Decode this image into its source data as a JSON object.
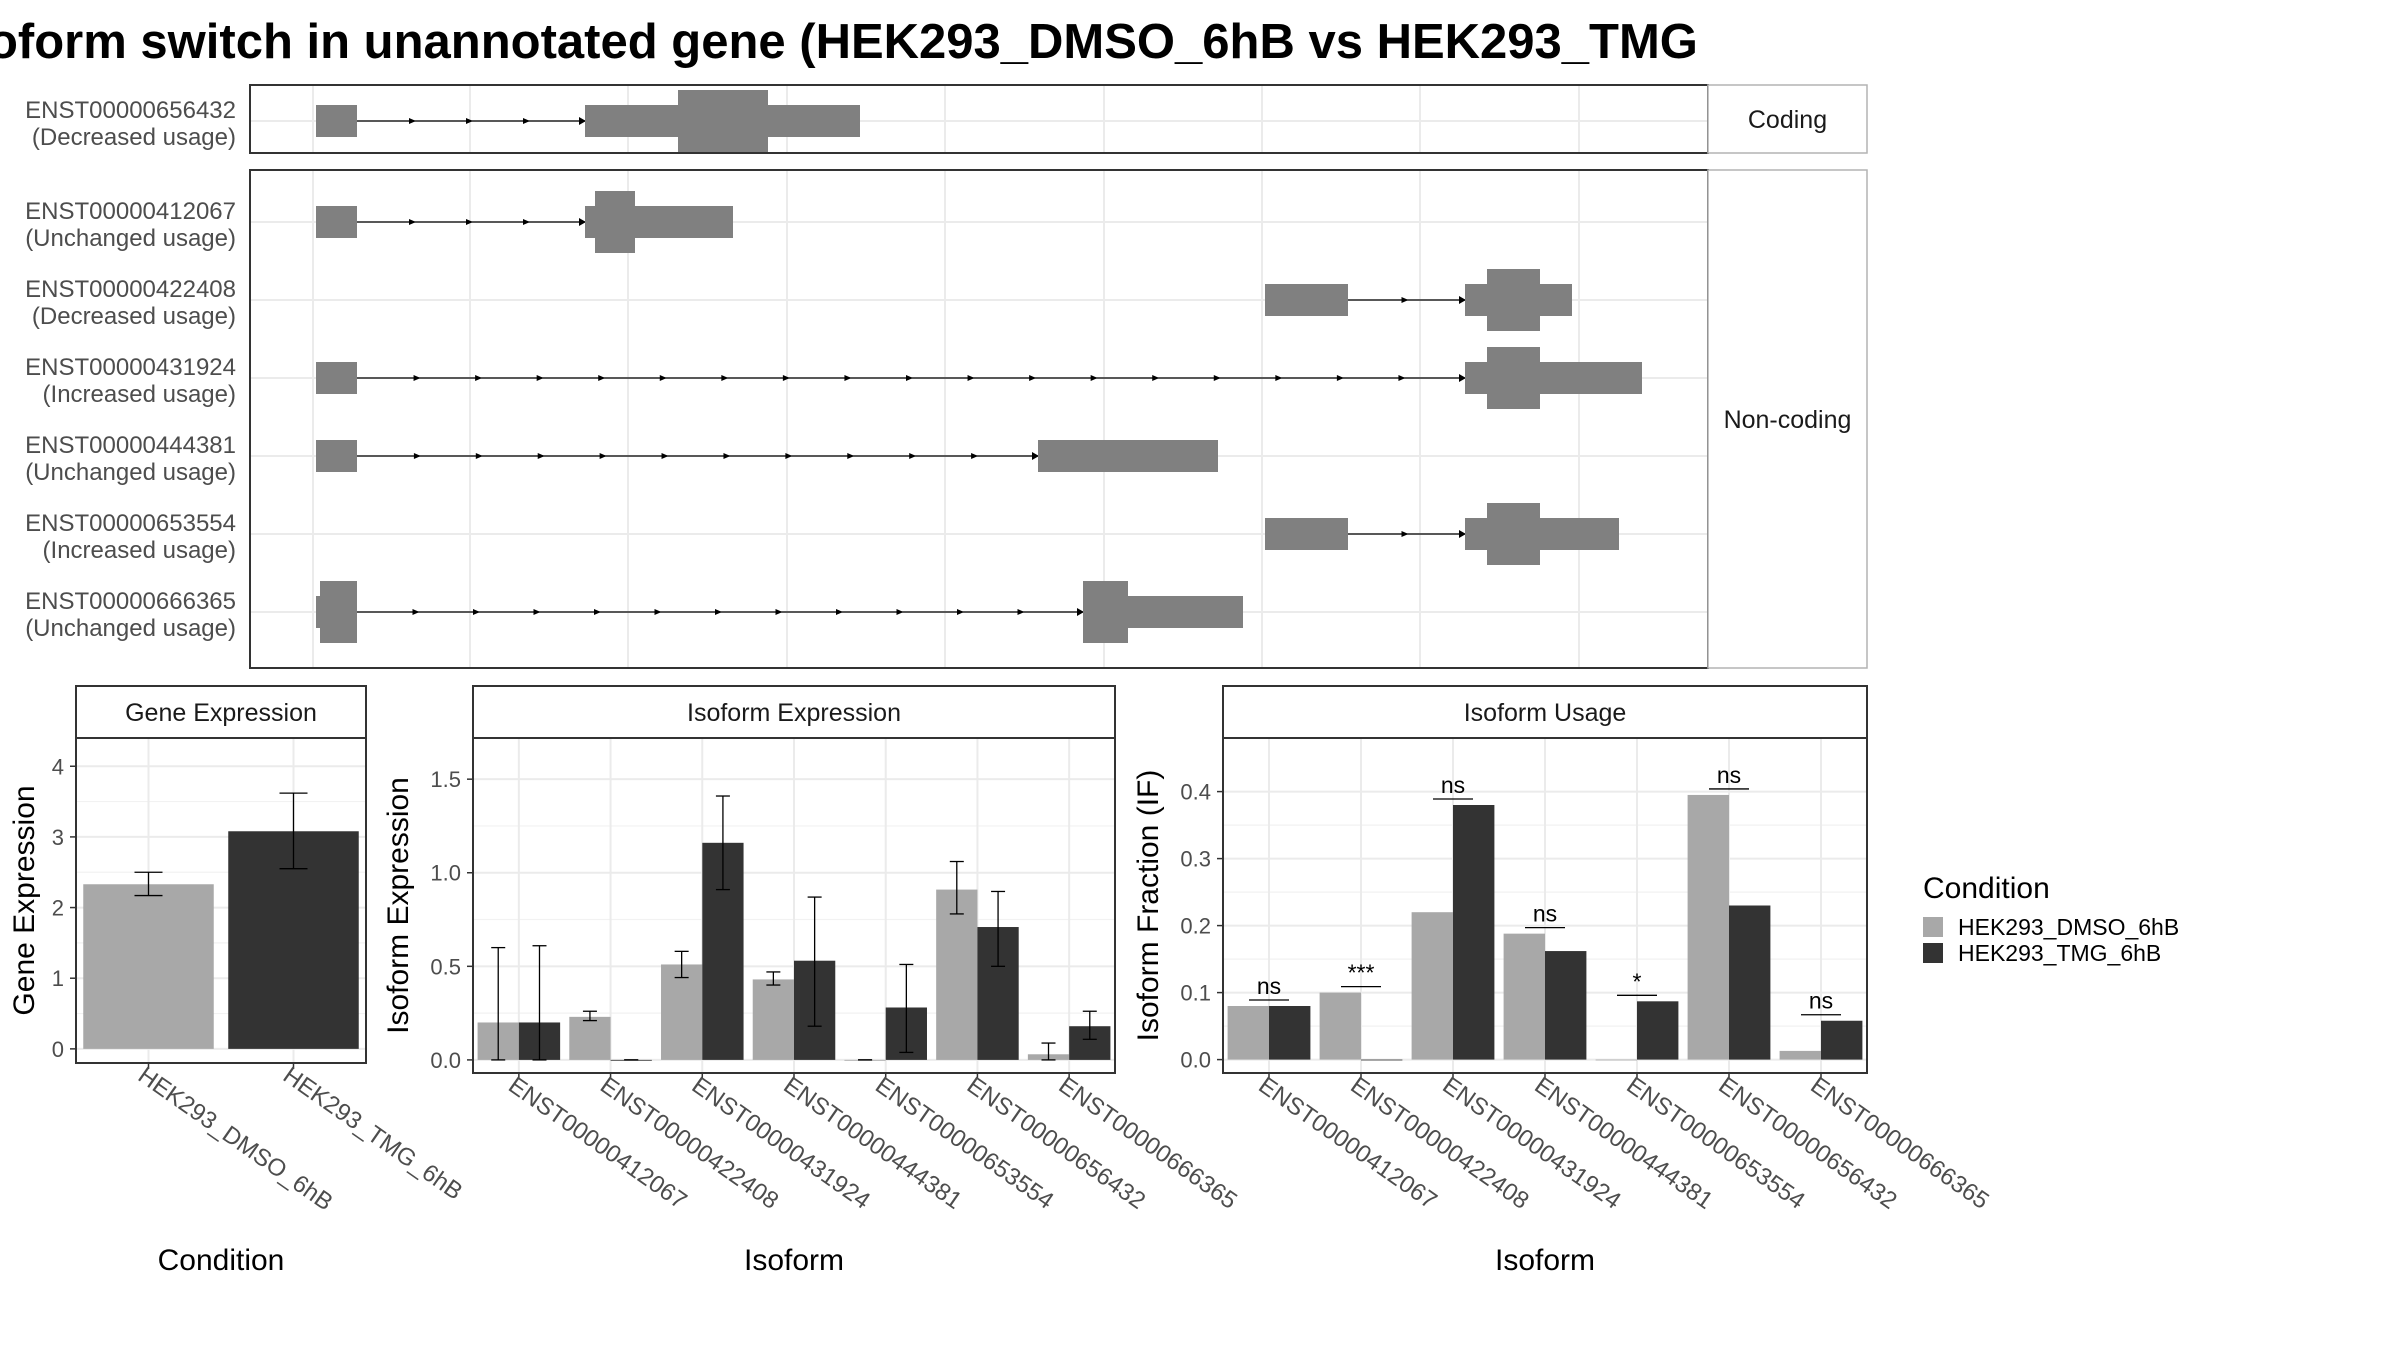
{
  "title": "oform switch in unannotated gene (HEK293_DMSO_6hB vs HEK293_TMG",
  "colors": {
    "dmso": "#a8a8a8",
    "tmg": "#333333",
    "feature": "#808080",
    "grid": "#ebebeb",
    "strip_bg": "#ffffff",
    "panel_border": "#333333",
    "strip_border": "#b3b3b3"
  },
  "transcript_panel": {
    "facets": [
      {
        "label": "Coding",
        "rows": 1
      },
      {
        "label": "Non-coding",
        "rows": 6
      }
    ],
    "transcripts": [
      {
        "id": "ENST00000656432",
        "status": "(Decreased usage)",
        "facet": 0
      },
      {
        "id": "ENST00000412067",
        "status": "(Unchanged usage)",
        "facet": 1
      },
      {
        "id": "ENST00000422408",
        "status": "(Decreased usage)",
        "facet": 1
      },
      {
        "id": "ENST00000431924",
        "status": "(Increased usage)",
        "facet": 1
      },
      {
        "id": "ENST00000444381",
        "status": "(Unchanged usage)",
        "facet": 1
      },
      {
        "id": "ENST00000653554",
        "status": "(Increased usage)",
        "facet": 1
      },
      {
        "id": "ENST00000666365",
        "status": "(Unchanged usage)",
        "facet": 1
      }
    ]
  },
  "chart_data": [
    {
      "type": "bar",
      "title": "Gene Expression",
      "xlabel": "Condition",
      "ylabel": "Gene Expression",
      "categories": [
        "HEK293_DMSO_6hB",
        "HEK293_TMG_6hB"
      ],
      "values": [
        2.33,
        3.08
      ],
      "error_low": [
        2.17,
        2.55
      ],
      "error_high": [
        2.5,
        3.62
      ],
      "ylim": [
        -0.2,
        4.4
      ],
      "yticks": [
        0,
        1,
        2,
        3,
        4
      ],
      "grid": true
    },
    {
      "type": "bar",
      "title": "Isoform Expression",
      "xlabel": "Isoform",
      "ylabel": "Isoform Expression",
      "categories": [
        "ENST00000412067",
        "ENST00000422408",
        "ENST00000431924",
        "ENST00000444381",
        "ENST00000653554",
        "ENST00000656432",
        "ENST00000666365"
      ],
      "series": [
        {
          "name": "HEK293_DMSO_6hB",
          "values": [
            0.2,
            0.23,
            0.51,
            0.43,
            0.0,
            0.91,
            0.03
          ],
          "error_low": [
            0.0,
            0.21,
            0.44,
            0.4,
            0.0,
            0.78,
            0.0
          ],
          "error_high": [
            0.6,
            0.26,
            0.58,
            0.47,
            0.0,
            1.06,
            0.09
          ]
        },
        {
          "name": "HEK293_TMG_6hB",
          "values": [
            0.2,
            0.0,
            1.16,
            0.53,
            0.28,
            0.71,
            0.18
          ],
          "error_low": [
            0.0,
            0.0,
            0.91,
            0.18,
            0.04,
            0.5,
            0.11
          ],
          "error_high": [
            0.61,
            0.0,
            1.41,
            0.87,
            0.51,
            0.9,
            0.26
          ]
        }
      ],
      "ylim": [
        -0.07,
        1.72
      ],
      "yticks": [
        0.0,
        0.5,
        1.0,
        1.5
      ],
      "grid": true
    },
    {
      "type": "bar",
      "title": "Isoform Usage",
      "xlabel": "Isoform",
      "ylabel": "Isoform Fraction (IF)",
      "categories": [
        "ENST00000412067",
        "ENST00000422408",
        "ENST00000431924",
        "ENST00000444381",
        "ENST00000653554",
        "ENST00000656432",
        "ENST00000666365"
      ],
      "series": [
        {
          "name": "HEK293_DMSO_6hB",
          "values": [
            0.08,
            0.1,
            0.22,
            0.188,
            0.0,
            0.395,
            0.013
          ]
        },
        {
          "name": "HEK293_TMG_6hB",
          "values": [
            0.08,
            0.0,
            0.38,
            0.162,
            0.087,
            0.23,
            0.058
          ]
        }
      ],
      "significance": [
        "ns",
        "***",
        "ns",
        "ns",
        "*",
        "ns",
        "ns"
      ],
      "ylim": [
        -0.02,
        0.48
      ],
      "yticks": [
        0.0,
        0.1,
        0.2,
        0.3,
        0.4
      ],
      "grid": true
    }
  ],
  "legend": {
    "title": "Condition",
    "items": [
      "HEK293_DMSO_6hB",
      "HEK293_TMG_6hB"
    ]
  }
}
